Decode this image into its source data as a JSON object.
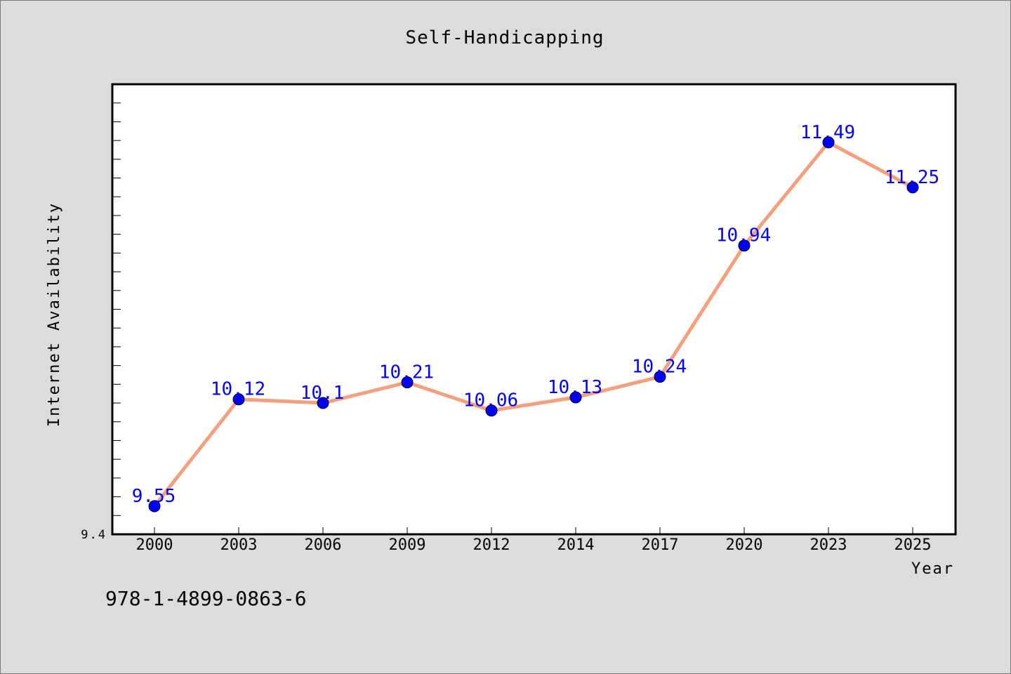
{
  "chart_data": {
    "type": "line",
    "title": "Self-Handicapping",
    "xlabel": "Year",
    "ylabel": "Internet Availability",
    "categories": [
      "2000",
      "2003",
      "2006",
      "2009",
      "2012",
      "2014",
      "2017",
      "2020",
      "2023",
      "2025"
    ],
    "series": [
      {
        "values": [
          9.55,
          10.12,
          10.1,
          10.21,
          10.06,
          10.13,
          10.24,
          10.94,
          11.49,
          11.25
        ],
        "labels": [
          "9.55",
          "10.12",
          "10.1",
          "10.21",
          "10.06",
          "10.13",
          "10.24",
          "10.94",
          "11.49",
          "11.25"
        ],
        "line_color": "#f4a07e",
        "marker_color": "#0000ff"
      }
    ],
    "ylim": [
      9.4,
      11.8
    ],
    "y_tick_labels": [
      "9.4"
    ],
    "grid": false,
    "legend": "none"
  },
  "footer": {
    "isbn": "978-1-4899-0863-6"
  }
}
